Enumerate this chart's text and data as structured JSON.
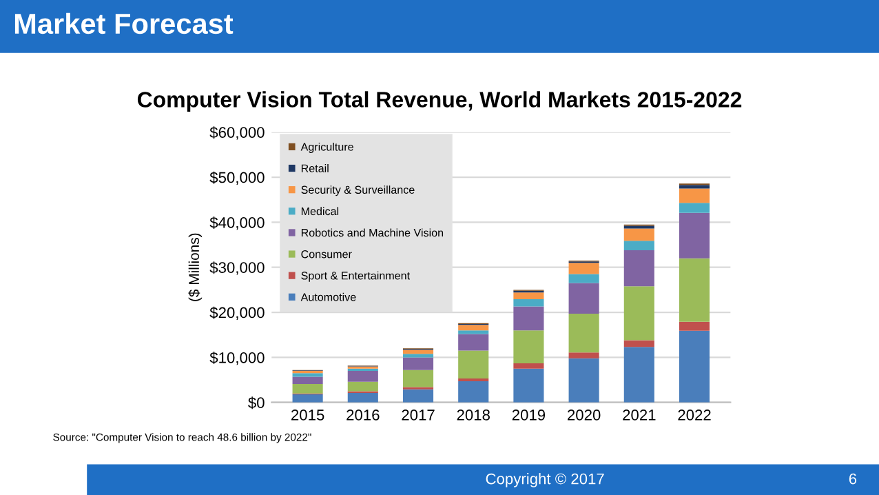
{
  "chart_data": {
    "type": "bar",
    "stacked": true,
    "title": "Market Forecast",
    "subtitle": "Computer Vision Total Revenue, World Markets 2015-2022",
    "ylabel": "($ Millions)",
    "categories": [
      "2015",
      "2016",
      "2017",
      "2018",
      "2019",
      "2020",
      "2021",
      "2022"
    ],
    "series": [
      {
        "name": "Automotive",
        "color": "#4a7ebb",
        "values": [
          1800,
          2100,
          2900,
          4700,
          7500,
          9800,
          12300,
          15900
        ]
      },
      {
        "name": "Sport & Entertainment",
        "color": "#c0504d",
        "values": [
          200,
          400,
          500,
          600,
          1200,
          1300,
          1500,
          2000
        ]
      },
      {
        "name": "Consumer",
        "color": "#9bbb59",
        "values": [
          2100,
          2100,
          3800,
          6200,
          7300,
          8600,
          12000,
          14100
        ]
      },
      {
        "name": "Robotics and Machine Vision",
        "color": "#8064a2",
        "values": [
          1600,
          2400,
          2800,
          3700,
          5300,
          6800,
          8000,
          10100
        ]
      },
      {
        "name": "Medical",
        "color": "#4bacc6",
        "values": [
          800,
          500,
          800,
          800,
          1600,
          2000,
          2100,
          2200
        ]
      },
      {
        "name": "Security & Surveillance",
        "color": "#f79646",
        "values": [
          500,
          500,
          900,
          1200,
          1500,
          2500,
          2700,
          3200
        ]
      },
      {
        "name": "Retail",
        "color": "#1f3864",
        "values": [
          100,
          100,
          200,
          200,
          400,
          300,
          600,
          800
        ]
      },
      {
        "name": "Agriculture",
        "color": "#7f4f21",
        "values": [
          100,
          100,
          100,
          200,
          200,
          200,
          300,
          300
        ]
      }
    ],
    "ylim": [
      0,
      60000
    ],
    "yticks": [
      {
        "value": 0,
        "label": "$0"
      },
      {
        "value": 10000,
        "label": "$10,000"
      },
      {
        "value": 20000,
        "label": "$20,000"
      },
      {
        "value": 30000,
        "label": "$30,000"
      },
      {
        "value": 40000,
        "label": "$40,000"
      },
      {
        "value": 50000,
        "label": "$50,000"
      },
      {
        "value": 60000,
        "label": "$60,000"
      }
    ],
    "grid": "y",
    "legend": "top left",
    "annotations": [
      "Source: \"Computer Vision to reach 48.6 billion by 2022\"",
      "Copyright © 2017",
      "6"
    ]
  }
}
